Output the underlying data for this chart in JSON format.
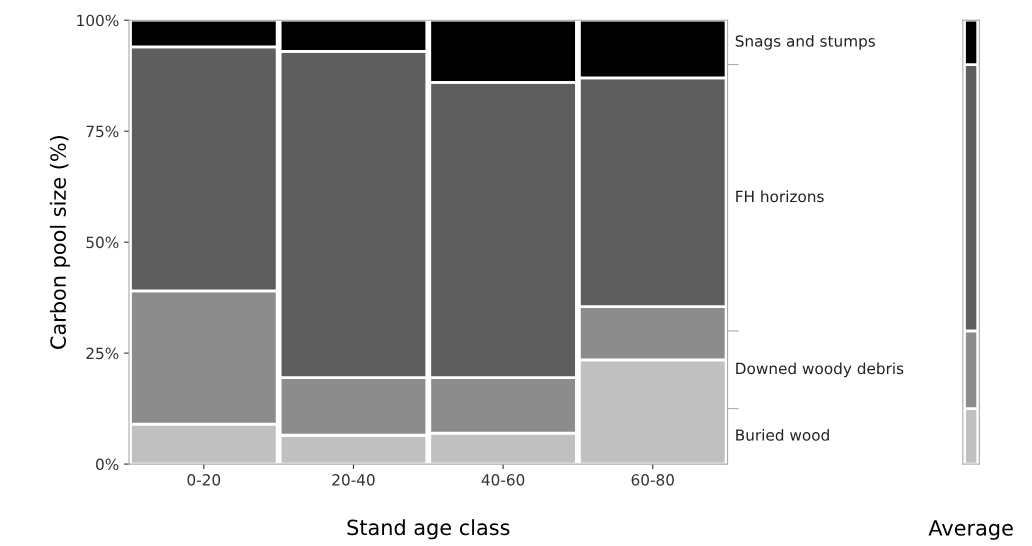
{
  "chart_data": [
    {
      "type": "bar",
      "stacked": true,
      "xlabel": "Stand age class",
      "ylabel": "Carbon pool size (%)",
      "categories": [
        "0-20",
        "20-40",
        "40-60",
        "60-80"
      ],
      "ylim": [
        0,
        100
      ],
      "yticks": [
        {
          "value": 0,
          "label": "0%"
        },
        {
          "value": 25,
          "label": "25%"
        },
        {
          "value": 50,
          "label": "50%"
        },
        {
          "value": 75,
          "label": "75%"
        },
        {
          "value": 100,
          "label": "100%"
        }
      ],
      "grid": false,
      "legend": false,
      "series": [
        {
          "name": "Buried wood",
          "color": "#c0c0c0",
          "values": [
            9,
            6.5,
            7,
            23.5
          ]
        },
        {
          "name": "Downed woody debris",
          "color": "#8c8c8c",
          "values": [
            30,
            13,
            12.5,
            12
          ]
        },
        {
          "name": "FH horizons",
          "color": "#5e5e5e",
          "values": [
            55,
            73.5,
            66.5,
            51.5
          ]
        },
        {
          "name": "Snags and stumps",
          "color": "#000000",
          "values": [
            6,
            7,
            14,
            13
          ]
        }
      ]
    },
    {
      "type": "bar",
      "stacked": true,
      "xlabel": "Average",
      "categories": [
        null
      ],
      "ylim": [
        0,
        100
      ],
      "tick_labels": false,
      "series": [
        {
          "color": "#c0c0c0",
          "values": [
            12.5
          ]
        },
        {
          "color": "#8c8c8c",
          "values": [
            17.5
          ]
        },
        {
          "color": "#5e5e5e",
          "values": [
            60
          ]
        },
        {
          "color": "#000000",
          "values": [
            10
          ]
        }
      ]
    }
  ]
}
